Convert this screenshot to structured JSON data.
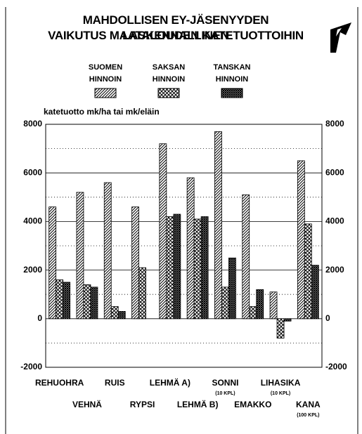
{
  "chart_data": {
    "type": "bar",
    "title": [
      "MAHDOLLISEN EY-JÄSENYYDEN LASKENNALLINEN",
      "VAIKUTUS MAATALOUDEN KATETUOTTOIHIN"
    ],
    "y_label": "katetuotto mk/ha tai mk/eläin",
    "categories": [
      "REHUOHRA",
      "VEHNÄ",
      "RUIS",
      "RYPSI",
      "LEHMÄ A)",
      "LEHMÄ B)",
      "SONNI",
      "EMAKKO",
      "LIHASIKA",
      "KANA"
    ],
    "category_notes": [
      null,
      null,
      null,
      null,
      null,
      null,
      "(10 KPL)",
      null,
      "(10 KPL)",
      "(100 KPL)"
    ],
    "series": [
      {
        "name": "SUOMEN HINNOIN",
        "color": "#000000",
        "pattern": "diagonal",
        "values": [
          4600,
          5200,
          5600,
          4600,
          7200,
          5800,
          7700,
          5100,
          1100,
          6500
        ]
      },
      {
        "name": "SAKSAN HINNOIN",
        "color": "#000000",
        "pattern": "cross",
        "values": [
          1600,
          1400,
          500,
          2100,
          4200,
          4100,
          1300,
          500,
          -800,
          3900
        ]
      },
      {
        "name": "TANSKAN HINNOIN",
        "color": "#000000",
        "pattern": "dense-cross",
        "values": [
          1500,
          1300,
          300,
          0,
          4300,
          4200,
          2500,
          1200,
          -100,
          2200
        ]
      }
    ],
    "ylim": [
      -2000,
      8000
    ],
    "yticks": [
      -2000,
      0,
      2000,
      4000,
      6000,
      8000
    ],
    "yminor": [
      -1000,
      1000,
      3000,
      5000,
      7000
    ],
    "grid": true
  }
}
